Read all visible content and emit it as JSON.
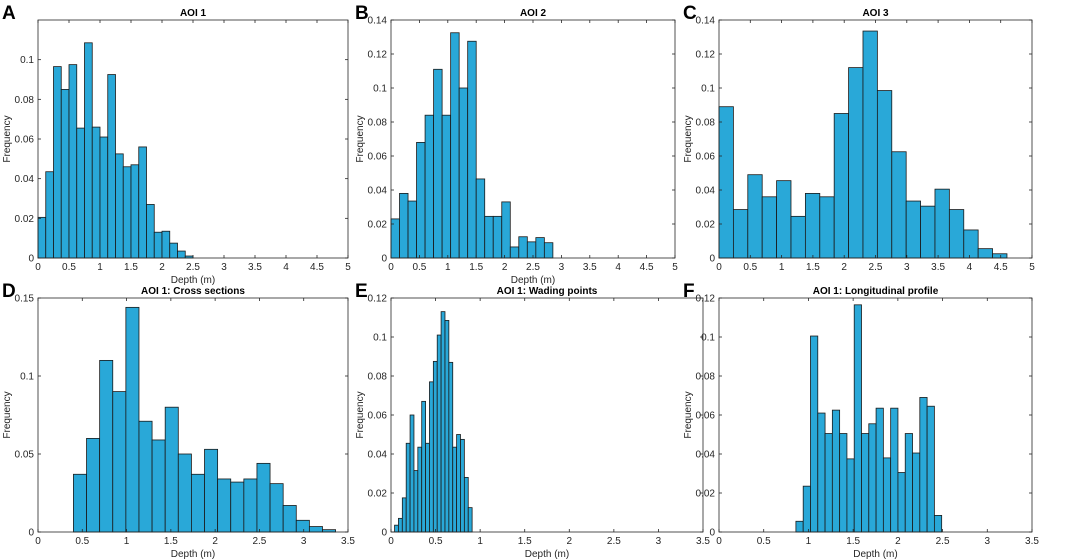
{
  "bar_color": "#29a8d8",
  "chart_data": [
    {
      "panel": "A",
      "type": "bar",
      "title": "AOI 1",
      "xlabel": "Depth (m)",
      "ylabel": "Frequency",
      "xlim": [
        0,
        5
      ],
      "ylim": [
        0,
        0.12
      ],
      "xticks": [
        0,
        0.5,
        1,
        1.5,
        2,
        2.5,
        3,
        3.5,
        4,
        4.5,
        5
      ],
      "xtick_labels": [
        "0",
        "0.5",
        "1",
        "1.5",
        "2",
        "2.5",
        "3",
        "3.5",
        "4",
        "4.5",
        "5"
      ],
      "yticks": [
        0,
        0.02,
        0.04,
        0.06,
        0.08,
        0.1
      ],
      "ytick_labels": [
        "0",
        "0.02",
        "0.04",
        "0.06",
        "0.08",
        "0.1"
      ],
      "bin_start": 0,
      "bin_width": 0.125,
      "values": [
        0.0205,
        0.0435,
        0.0965,
        0.085,
        0.0975,
        0.0655,
        0.1085,
        0.066,
        0.061,
        0.0925,
        0.0525,
        0.046,
        0.047,
        0.056,
        0.027,
        0.013,
        0.0135,
        0.0075,
        0.0035,
        0.001
      ]
    },
    {
      "panel": "B",
      "type": "bar",
      "title": "AOI 2",
      "xlabel": "Depth (m)",
      "ylabel": "Frequency",
      "xlim": [
        0,
        5
      ],
      "ylim": [
        0,
        0.14
      ],
      "xticks": [
        0,
        0.5,
        1,
        1.5,
        2,
        2.5,
        3,
        3.5,
        4,
        4.5,
        5
      ],
      "xtick_labels": [
        "0",
        "0.5",
        "1",
        "1.5",
        "2",
        "2.5",
        "3",
        "3.5",
        "4",
        "4.5",
        "5"
      ],
      "yticks": [
        0,
        0.02,
        0.04,
        0.06,
        0.08,
        0.1,
        0.12,
        0.14
      ],
      "ytick_labels": [
        "0",
        "0.02",
        "0.04",
        "0.06",
        "0.08",
        "0.1",
        "0.12",
        "0.14"
      ],
      "bin_start": 0,
      "bin_width": 0.15,
      "values": [
        0.023,
        0.038,
        0.0335,
        0.068,
        0.084,
        0.111,
        0.084,
        0.1325,
        0.1,
        0.1275,
        0.0465,
        0.0245,
        0.0245,
        0.033,
        0.0065,
        0.0125,
        0.0095,
        0.012,
        0.009
      ]
    },
    {
      "panel": "C",
      "type": "bar",
      "title": "AOI 3",
      "xlabel": "",
      "ylabel": "Frequency",
      "xlim": [
        0,
        5
      ],
      "ylim": [
        0,
        0.14
      ],
      "xticks": [
        0,
        0.5,
        1,
        1.5,
        2,
        2.5,
        3,
        3.5,
        4,
        4.5,
        5
      ],
      "xtick_labels": [
        "0",
        "0.5",
        "1",
        "1.5",
        "2",
        "2.5",
        "3",
        "3.5",
        "4",
        "4.5",
        "5"
      ],
      "yticks": [
        0,
        0.02,
        0.04,
        0.06,
        0.08,
        0.1,
        0.12,
        0.14
      ],
      "ytick_labels": [
        "0",
        "0.02",
        "0.04",
        "0.06",
        "0.08",
        "0.1",
        "0.12",
        "0.14"
      ],
      "bin_start": 0,
      "bin_width": 0.23,
      "values": [
        0.089,
        0.0285,
        0.049,
        0.036,
        0.0455,
        0.0245,
        0.038,
        0.036,
        0.085,
        0.112,
        0.1335,
        0.0985,
        0.0625,
        0.0335,
        0.0305,
        0.0405,
        0.0285,
        0.0165,
        0.0055,
        0.0025
      ]
    },
    {
      "panel": "D",
      "type": "bar",
      "title": "AOI 1: Cross sections",
      "xlabel": "Depth (m)",
      "ylabel": "Frequency",
      "xlim": [
        0,
        3.5
      ],
      "ylim": [
        0,
        0.15
      ],
      "xticks": [
        0,
        0.5,
        1,
        1.5,
        2,
        2.5,
        3,
        3.5
      ],
      "xtick_labels": [
        "0",
        "0.5",
        "1",
        "1.5",
        "2",
        "2.5",
        "3",
        "3.5"
      ],
      "yticks": [
        0,
        0.05,
        0.1,
        0.15
      ],
      "ytick_labels": [
        "0",
        "0.05",
        "0.1",
        "0.15"
      ],
      "bin_start": 0.4,
      "bin_width": 0.148,
      "values": [
        0.037,
        0.06,
        0.11,
        0.09,
        0.144,
        0.071,
        0.059,
        0.08,
        0.05,
        0.037,
        0.053,
        0.034,
        0.032,
        0.034,
        0.044,
        0.031,
        0.017,
        0.0075,
        0.0035,
        0.0015
      ]
    },
    {
      "panel": "E",
      "type": "bar",
      "title": "AOI 1: Wading points",
      "xlabel": "Depth (m)",
      "ylabel": "Frequency",
      "xlim": [
        0,
        3.5
      ],
      "ylim": [
        0,
        0.12
      ],
      "xticks": [
        0,
        0.5,
        1,
        1.5,
        2,
        2.5,
        3,
        3.5
      ],
      "xtick_labels": [
        "0",
        "0.5",
        "1",
        "1.5",
        "2",
        "2.5",
        "3",
        "3.5"
      ],
      "yticks": [
        0,
        0.02,
        0.04,
        0.06,
        0.08,
        0.1,
        0.12
      ],
      "ytick_labels": [
        "0",
        "0.02",
        "0.04",
        "0.06",
        "0.08",
        "0.1",
        "0.12"
      ],
      "bin_start": 0.04,
      "bin_width": 0.0435,
      "values": [
        0.0035,
        0.007,
        0.0175,
        0.0455,
        0.06,
        0.0315,
        0.0435,
        0.067,
        0.0455,
        0.077,
        0.0875,
        0.101,
        0.113,
        0.1085,
        0.087,
        0.0435,
        0.05,
        0.0475,
        0.028,
        0.0125
      ]
    },
    {
      "panel": "F",
      "type": "bar",
      "title": "AOI 1: Longitudinal profile",
      "xlabel": "Depth (m)",
      "ylabel": "Frequency",
      "xlim": [
        0,
        3.5
      ],
      "ylim": [
        0,
        0.12
      ],
      "xticks": [
        0,
        0.5,
        1,
        1.5,
        2,
        2.5,
        3,
        3.5
      ],
      "xtick_labels": [
        "0",
        "0.5",
        "1",
        "1.5",
        "2",
        "2.5",
        "3",
        "3.5"
      ],
      "yticks": [
        0,
        0.02,
        0.04,
        0.06,
        0.08,
        0.1,
        0.12
      ],
      "ytick_labels": [
        "0",
        "0.02",
        "0.04",
        "0.06",
        "0.08",
        "0.1",
        "0.12"
      ],
      "bin_start": 0.86,
      "bin_width": 0.0815,
      "values": [
        0.0055,
        0.0235,
        0.1005,
        0.061,
        0.0505,
        0.0625,
        0.0505,
        0.0375,
        0.1165,
        0.0505,
        0.0555,
        0.0635,
        0.038,
        0.0635,
        0.0305,
        0.0505,
        0.0405,
        0.069,
        0.0645,
        0.0085
      ]
    }
  ]
}
